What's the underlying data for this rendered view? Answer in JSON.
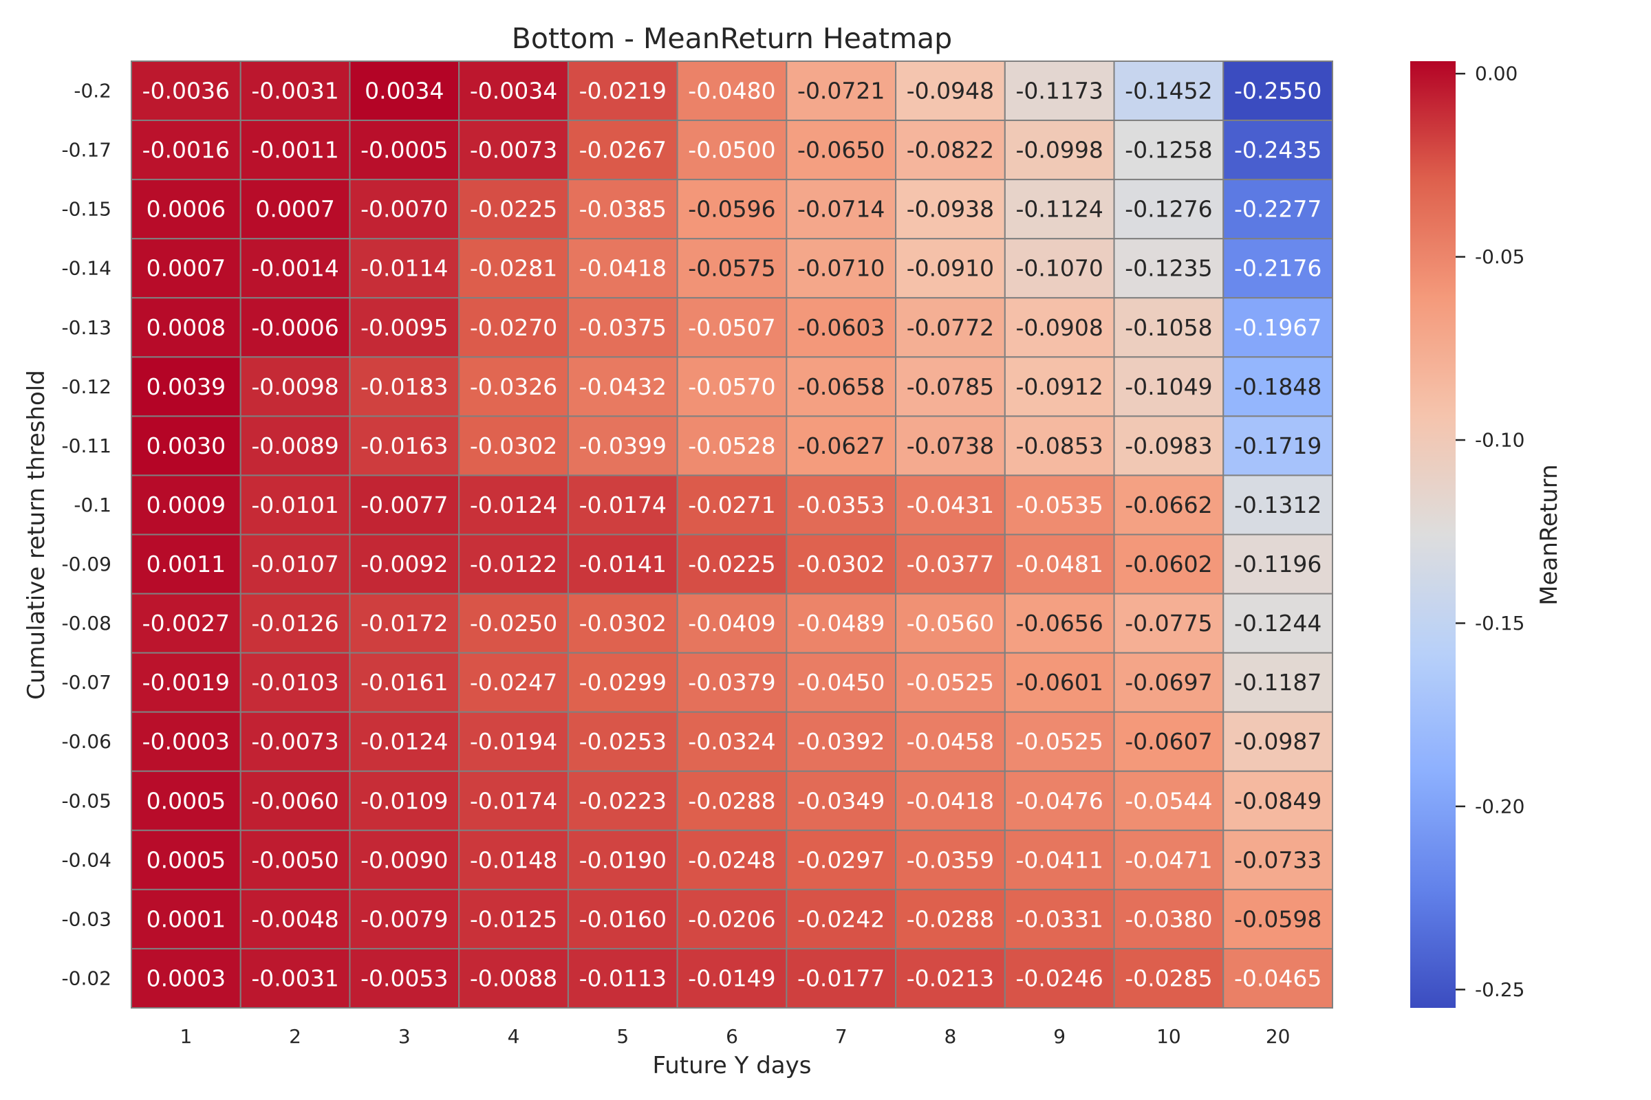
{
  "chart_data": {
    "type": "heatmap",
    "title": "Bottom - MeanReturn Heatmap",
    "xlabel": "Future Y days",
    "ylabel": "Cumulative return threshold",
    "colorbar_label": "MeanReturn",
    "colormap": "coolwarm",
    "vmin": -0.255,
    "vmax": 0.0034,
    "colorbar_ticks": [
      "0.00",
      "-0.05",
      "-0.10",
      "-0.15",
      "-0.20",
      "-0.25"
    ],
    "colorbar_tick_values": [
      0.0,
      -0.05,
      -0.1,
      -0.15,
      -0.2,
      -0.25
    ],
    "x": [
      "1",
      "2",
      "3",
      "4",
      "5",
      "6",
      "7",
      "8",
      "9",
      "10",
      "20"
    ],
    "y": [
      "-0.2",
      "-0.17",
      "-0.15",
      "-0.14",
      "-0.13",
      "-0.12",
      "-0.11",
      "-0.1",
      "-0.09",
      "-0.08",
      "-0.07",
      "-0.06",
      "-0.05",
      "-0.04",
      "-0.03",
      "-0.02"
    ],
    "values": [
      [
        -0.0036,
        -0.0031,
        0.0034,
        -0.0034,
        -0.0219,
        -0.048,
        -0.0721,
        -0.0948,
        -0.1173,
        -0.1452,
        -0.255
      ],
      [
        -0.0016,
        -0.0011,
        -0.0005,
        -0.0073,
        -0.0267,
        -0.05,
        -0.065,
        -0.0822,
        -0.0998,
        -0.1258,
        -0.2435
      ],
      [
        0.0006,
        0.0007,
        -0.007,
        -0.0225,
        -0.0385,
        -0.0596,
        -0.0714,
        -0.0938,
        -0.1124,
        -0.1276,
        -0.2277
      ],
      [
        0.0007,
        -0.0014,
        -0.0114,
        -0.0281,
        -0.0418,
        -0.0575,
        -0.071,
        -0.091,
        -0.107,
        -0.1235,
        -0.2176
      ],
      [
        0.0008,
        -0.0006,
        -0.0095,
        -0.027,
        -0.0375,
        -0.0507,
        -0.0603,
        -0.0772,
        -0.0908,
        -0.1058,
        -0.1967
      ],
      [
        0.0039,
        -0.0098,
        -0.0183,
        -0.0326,
        -0.0432,
        -0.057,
        -0.0658,
        -0.0785,
        -0.0912,
        -0.1049,
        -0.1848
      ],
      [
        0.003,
        -0.0089,
        -0.0163,
        -0.0302,
        -0.0399,
        -0.0528,
        -0.0627,
        -0.0738,
        -0.0853,
        -0.0983,
        -0.1719
      ],
      [
        0.0009,
        -0.0101,
        -0.0077,
        -0.0124,
        -0.0174,
        -0.0271,
        -0.0353,
        -0.0431,
        -0.0535,
        -0.0662,
        -0.1312
      ],
      [
        0.0011,
        -0.0107,
        -0.0092,
        -0.0122,
        -0.0141,
        -0.0225,
        -0.0302,
        -0.0377,
        -0.0481,
        -0.0602,
        -0.1196
      ],
      [
        -0.0027,
        -0.0126,
        -0.0172,
        -0.025,
        -0.0302,
        -0.0409,
        -0.0489,
        -0.056,
        -0.0656,
        -0.0775,
        -0.1244
      ],
      [
        -0.0019,
        -0.0103,
        -0.0161,
        -0.0247,
        -0.0299,
        -0.0379,
        -0.045,
        -0.0525,
        -0.0601,
        -0.0697,
        -0.1187
      ],
      [
        -0.0003,
        -0.0073,
        -0.0124,
        -0.0194,
        -0.0253,
        -0.0324,
        -0.0392,
        -0.0458,
        -0.0525,
        -0.0607,
        -0.0987
      ],
      [
        0.0005,
        -0.006,
        -0.0109,
        -0.0174,
        -0.0223,
        -0.0288,
        -0.0349,
        -0.0418,
        -0.0476,
        -0.0544,
        -0.0849
      ],
      [
        0.0005,
        -0.005,
        -0.009,
        -0.0148,
        -0.019,
        -0.0248,
        -0.0297,
        -0.0359,
        -0.0411,
        -0.0471,
        -0.0733
      ],
      [
        0.0001,
        -0.0048,
        -0.0079,
        -0.0125,
        -0.016,
        -0.0206,
        -0.0242,
        -0.0288,
        -0.0331,
        -0.038,
        -0.0598
      ],
      [
        0.0003,
        -0.0031,
        -0.0053,
        -0.0088,
        -0.0113,
        -0.0149,
        -0.0177,
        -0.0213,
        -0.0246,
        -0.0285,
        -0.0465
      ]
    ],
    "annotation_format": "0.0000",
    "grid_line_color": "#808080",
    "legend": "colorbar-right"
  }
}
